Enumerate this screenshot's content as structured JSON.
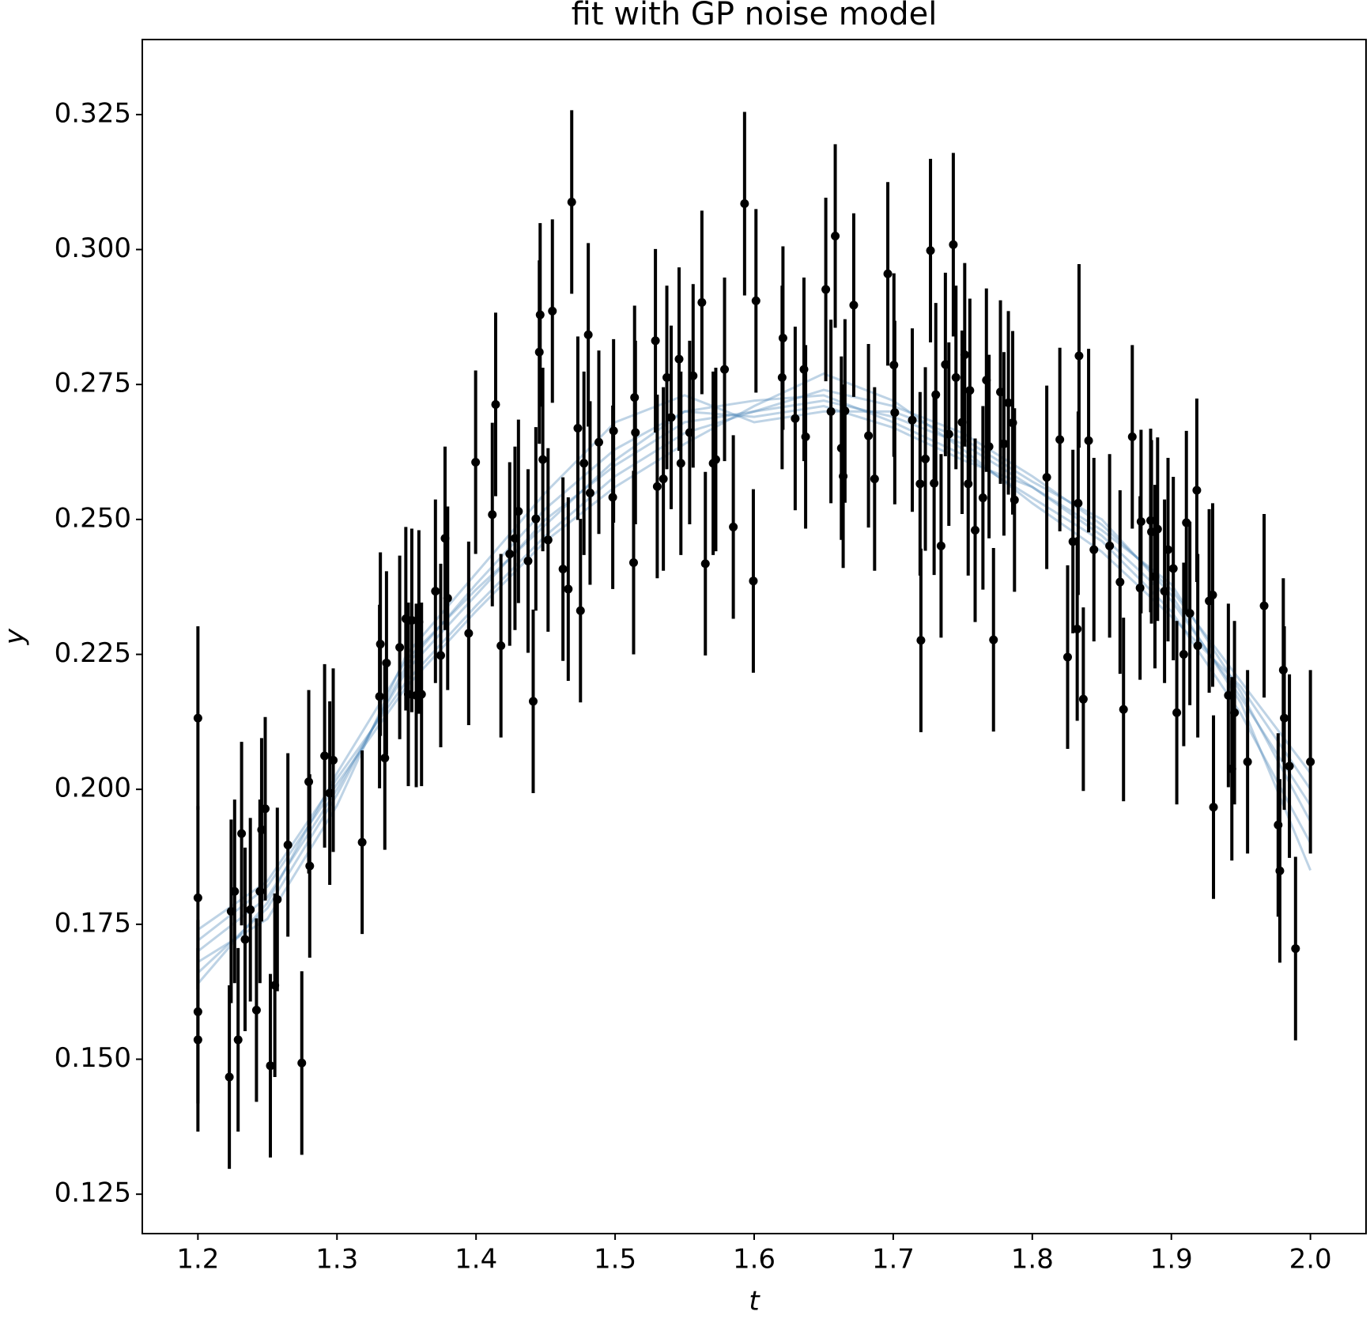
{
  "chart_data": {
    "type": "scatter",
    "title": "fit with GP noise model",
    "xlabel": "t",
    "ylabel": "y",
    "xlim": [
      1.16,
      2.04
    ],
    "ylim": [
      0.1177,
      0.3389
    ],
    "xticks": [
      1.2,
      1.3,
      1.4,
      1.5,
      1.6,
      1.7,
      1.8,
      1.9,
      {
        "value": 2,
        "label": "2.0"
      }
    ],
    "yticks": [
      0.125,
      {
        "value": 0.15,
        "label": "0.150"
      },
      0.175,
      {
        "value": 0.2,
        "label": "0.200"
      },
      0.225,
      {
        "value": 0.25,
        "label": "0.250"
      },
      0.275,
      {
        "value": 0.3,
        "label": "0.300"
      },
      0.325
    ],
    "line_x": [
      1.2,
      1.25,
      1.3,
      1.35,
      1.4,
      1.45,
      1.5,
      1.55,
      1.6,
      1.65,
      1.7,
      1.75,
      1.8,
      1.85,
      1.9,
      1.95,
      2.0
    ],
    "series": [
      {
        "type": "line",
        "color": "#4682b4",
        "opacity": 0.35,
        "values": [
          0.17,
          0.18,
          0.2,
          0.222,
          0.236,
          0.25,
          0.26,
          0.268,
          0.27,
          0.272,
          0.269,
          0.264,
          0.256,
          0.247,
          0.235,
          0.217,
          0.197
        ]
      },
      {
        "type": "line",
        "color": "#4682b4",
        "opacity": 0.35,
        "values": [
          0.166,
          0.178,
          0.199,
          0.223,
          0.238,
          0.252,
          0.263,
          0.27,
          0.272,
          0.273,
          0.268,
          0.262,
          0.254,
          0.246,
          0.233,
          0.214,
          0.19
        ]
      },
      {
        "type": "line",
        "color": "#4682b4",
        "opacity": 0.35,
        "values": [
          0.174,
          0.183,
          0.202,
          0.22,
          0.234,
          0.247,
          0.258,
          0.266,
          0.27,
          0.274,
          0.271,
          0.266,
          0.258,
          0.249,
          0.237,
          0.22,
          0.203
        ]
      },
      {
        "type": "line",
        "color": "#4682b4",
        "opacity": 0.35,
        "values": [
          0.168,
          0.176,
          0.197,
          0.225,
          0.24,
          0.255,
          0.268,
          0.273,
          0.268,
          0.27,
          0.27,
          0.265,
          0.257,
          0.25,
          0.236,
          0.216,
          0.185
        ]
      },
      {
        "type": "line",
        "color": "#4682b4",
        "opacity": 0.35,
        "values": [
          0.172,
          0.182,
          0.201,
          0.219,
          0.233,
          0.246,
          0.256,
          0.264,
          0.271,
          0.277,
          0.272,
          0.263,
          0.253,
          0.244,
          0.232,
          0.219,
          0.2
        ]
      },
      {
        "type": "line",
        "color": "#4682b4",
        "opacity": 0.35,
        "values": [
          0.164,
          0.179,
          0.203,
          0.224,
          0.237,
          0.249,
          0.261,
          0.27,
          0.269,
          0.271,
          0.267,
          0.261,
          0.256,
          0.248,
          0.238,
          0.218,
          0.194
        ]
      },
      {
        "type": "errorbar",
        "color": "#000000",
        "yerr": 0.017,
        "x": [
          1.2,
          1.2,
          1.2,
          1.2,
          1.2226,
          1.2239,
          1.2264,
          1.2289,
          1.2314,
          1.2339,
          1.2377,
          1.2421,
          1.2446,
          1.2458,
          1.2484,
          1.2521,
          1.2553,
          1.2571,
          1.2647,
          1.2747,
          1.2797,
          1.2804,
          1.2911,
          1.2948,
          1.2973,
          1.3181,
          1.3306,
          1.3312,
          1.3344,
          1.3356,
          1.3451,
          1.3495,
          1.3513,
          1.3538,
          1.357,
          1.3589,
          1.3608,
          1.3708,
          1.3746,
          1.3777,
          1.3796,
          1.3947,
          1.3997,
          1.4117,
          1.4141,
          1.4179,
          1.4242,
          1.428,
          1.4305,
          1.4374,
          1.4411,
          1.443,
          1.4455,
          1.4461,
          1.448,
          1.4518,
          1.4549,
          1.4625,
          1.4663,
          1.4688,
          1.4732,
          1.4751,
          1.4776,
          1.4807,
          1.482,
          1.4883,
          1.4983,
          1.4989,
          1.5133,
          1.514,
          1.5146,
          1.529,
          1.5303,
          1.5347,
          1.5372,
          1.5403,
          1.546,
          1.5473,
          1.5536,
          1.5561,
          1.5624,
          1.5649,
          1.5705,
          1.5724,
          1.5787,
          1.585,
          1.5931,
          1.5994,
          1.6013,
          1.6201,
          1.6207,
          1.6295,
          1.6358,
          1.637,
          1.6515,
          1.6552,
          1.6583,
          1.6627,
          1.664,
          1.6653,
          1.6716,
          1.6822,
          1.6866,
          1.6961,
          1.7005,
          1.7011,
          1.7137,
          1.7193,
          1.7199,
          1.7231,
          1.7268,
          1.7294,
          1.7306,
          1.7344,
          1.7375,
          1.74,
          1.7432,
          1.7451,
          1.7495,
          1.7514,
          1.7539,
          1.7551,
          1.7589,
          1.7645,
          1.767,
          1.7689,
          1.7721,
          1.7771,
          1.7796,
          1.7828,
          1.7859,
          1.7872,
          1.8104,
          1.8198,
          1.8254,
          1.8292,
          1.8323,
          1.833,
          1.8336,
          1.8367,
          1.8405,
          1.8443,
          1.8556,
          1.8631,
          1.8656,
          1.8719,
          1.8775,
          1.8782,
          1.8851,
          1.8857,
          1.8882,
          1.8901,
          1.8951,
          1.8976,
          1.9014,
          1.9039,
          1.9089,
          1.9108,
          1.9133,
          1.9183,
          1.919,
          1.9272,
          1.9297,
          1.9303,
          1.941,
          1.9435,
          1.9454,
          1.9548,
          1.9667,
          1.9768,
          1.978,
          1.9805,
          1.9812,
          1.9849,
          1.9893,
          2.0
        ],
        "y": [
          0.2132,
          0.1588,
          0.1536,
          0.1799,
          0.1467,
          0.1774,
          0.1811,
          0.1536,
          0.1918,
          0.1722,
          0.1777,
          0.1591,
          0.1811,
          0.1925,
          0.1964,
          0.1488,
          0.1637,
          0.1796,
          0.1897,
          0.1493,
          0.2014,
          0.1858,
          0.2062,
          0.1993,
          0.2054,
          0.1902,
          0.2172,
          0.2269,
          0.2058,
          0.2234,
          0.2263,
          0.2316,
          0.2176,
          0.2313,
          0.2174,
          0.231,
          0.2176,
          0.2367,
          0.2248,
          0.2465,
          0.2354,
          0.2289,
          0.2606,
          0.2509,
          0.2713,
          0.2266,
          0.2436,
          0.2465,
          0.2515,
          0.2423,
          0.2163,
          0.2501,
          0.281,
          0.2879,
          0.2611,
          0.2462,
          0.2886,
          0.2408,
          0.2371,
          0.3088,
          0.2669,
          0.2331,
          0.2604,
          0.2842,
          0.2549,
          0.2643,
          0.2541,
          0.2664,
          0.242,
          0.2726,
          0.2661,
          0.2831,
          0.2561,
          0.2575,
          0.2763,
          0.2689,
          0.2797,
          0.2604,
          0.2661,
          0.2766,
          0.2902,
          0.2418,
          0.2604,
          0.2611,
          0.2778,
          0.2486,
          0.3085,
          0.2386,
          0.2905,
          0.2763,
          0.2836,
          0.2687,
          0.2778,
          0.2653,
          0.2926,
          0.27,
          0.3025,
          0.2632,
          0.258,
          0.2701,
          0.2897,
          0.2655,
          0.2575,
          0.2955,
          0.2786,
          0.2698,
          0.2684,
          0.2566,
          0.2276,
          0.2612,
          0.2998,
          0.2567,
          0.2731,
          0.2451,
          0.2787,
          0.2658,
          0.3009,
          0.2763,
          0.268,
          0.2805,
          0.2566,
          0.2739,
          0.248,
          0.254,
          0.2758,
          0.2635,
          0.2277,
          0.2736,
          0.264,
          0.2716,
          0.2679,
          0.2536,
          0.2578,
          0.2648,
          0.2245,
          0.2459,
          0.2297,
          0.253,
          0.2803,
          0.2167,
          0.2646,
          0.2444,
          0.2451,
          0.2384,
          0.2148,
          0.2653,
          0.2373,
          0.2496,
          0.2498,
          0.2477,
          0.2394,
          0.2482,
          0.2367,
          0.2444,
          0.2409,
          0.2142,
          0.225,
          0.2494,
          0.2326,
          0.2554,
          0.2266,
          0.2349,
          0.236,
          0.1967,
          0.2174,
          0.2038,
          0.2142,
          0.2051,
          0.234,
          0.1934,
          0.1849,
          0.2221,
          0.2132,
          0.2043,
          0.1705,
          0.2051
        ]
      }
    ]
  }
}
